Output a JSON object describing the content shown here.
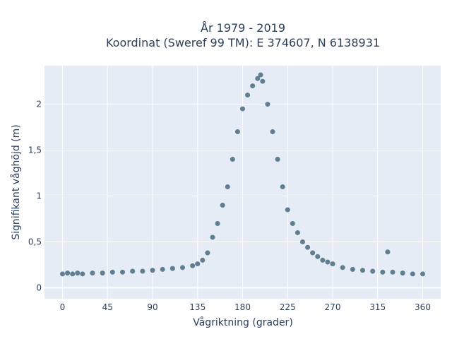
{
  "chart_data": {
    "type": "scatter",
    "title": "År 1979 - 2019",
    "subtitle": "Koordinat (Sweref 99 TM): E 374607, N 6138931",
    "xlabel": "Vågriktning (grader)",
    "ylabel": "Signifikant våghöjd (m)",
    "xlim": [
      -18,
      378
    ],
    "ylim": [
      -0.12,
      2.42
    ],
    "xticks": [
      0,
      45,
      90,
      135,
      180,
      225,
      270,
      315,
      360
    ],
    "xtick_labels": [
      "0",
      "45",
      "90",
      "135",
      "180",
      "225",
      "270",
      "315",
      "360"
    ],
    "yticks": [
      0,
      0.5,
      1,
      1.5,
      2
    ],
    "ytick_labels": [
      "0",
      "0,5",
      "1",
      "1,5",
      "2"
    ],
    "grid": true,
    "colors": {
      "marker": "#325a6e",
      "plot_bg": "#e5ecf6",
      "grid": "#ffffff",
      "text": "#2a3f5f"
    },
    "series": [
      {
        "marker": "circle",
        "x": [
          0,
          5,
          10,
          15,
          20,
          30,
          40,
          50,
          60,
          70,
          80,
          90,
          100,
          110,
          120,
          130,
          135,
          140,
          145,
          150,
          155,
          160,
          165,
          170,
          175,
          180,
          185,
          190,
          195,
          198,
          200,
          205,
          210,
          215,
          220,
          225,
          230,
          235,
          240,
          245,
          250,
          255,
          260,
          265,
          270,
          280,
          290,
          300,
          310,
          320,
          330,
          340,
          350,
          360,
          325
        ],
        "y": [
          0.15,
          0.16,
          0.15,
          0.16,
          0.15,
          0.16,
          0.16,
          0.17,
          0.17,
          0.18,
          0.18,
          0.19,
          0.2,
          0.21,
          0.22,
          0.24,
          0.26,
          0.3,
          0.38,
          0.55,
          0.7,
          0.9,
          1.1,
          1.4,
          1.7,
          1.95,
          2.1,
          2.2,
          2.28,
          2.32,
          2.25,
          2.0,
          1.7,
          1.4,
          1.1,
          0.85,
          0.7,
          0.6,
          0.5,
          0.44,
          0.38,
          0.34,
          0.3,
          0.28,
          0.26,
          0.22,
          0.2,
          0.19,
          0.18,
          0.17,
          0.17,
          0.16,
          0.15,
          0.15,
          0.39
        ]
      }
    ]
  }
}
